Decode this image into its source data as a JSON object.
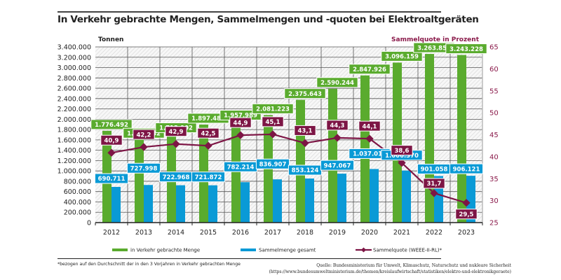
{
  "page": {
    "title": "In Verkehr gebrachte Mengen, Sammelmengen und -quoten bei Elektroaltgeräten",
    "footnote": "*bezogen auf den Durchschnitt der in den 3 Vorjahren in Verkehr gebrachten Menge",
    "source_line1": "Quelle: Bundesministerium für Umwelt, Klimaschutz, Naturschutz und nukleare Sicherheit",
    "source_line2": "(https://www.bundesumweltministerium.de/themen/kreislaufwirtschaft/statistiken/elektro-und-elektronikgeraete)"
  },
  "colors": {
    "green": "#5aab2e",
    "blue": "#0a9ad6",
    "maroon": "#7d1545"
  },
  "chart_data": {
    "type": "bar",
    "title": "In Verkehr gebrachte Mengen, Sammelmengen und -quoten bei Elektroaltgeräten",
    "ylabel": "Tonnen",
    "y2label": "Sammelquote in Prozent",
    "xlabel": "",
    "ylim": [
      0,
      3400000
    ],
    "y2lim": [
      25,
      65
    ],
    "grid": true,
    "legend_position": "bottom",
    "yticks": [
      "0",
      "200.000",
      "400.000",
      "600.000",
      "800.000",
      "1.000.000",
      "1.200.000",
      "1.400.000",
      "1.600.000",
      "1.800.000",
      "2.000.000",
      "2.200.000",
      "2.400.000",
      "2.600.000",
      "2.800.000",
      "3.000.000",
      "3.200.000",
      "3.400.000"
    ],
    "y2ticks": [
      "25",
      "30",
      "35",
      "40",
      "45",
      "50",
      "55",
      "60",
      "65"
    ],
    "categories": [
      "2012",
      "2013",
      "2014",
      "2015",
      "2016",
      "2017",
      "2018",
      "2019",
      "2020",
      "2021",
      "2022",
      "2023"
    ],
    "series": [
      {
        "name": "in Verkehr gebrachte Menge",
        "type": "bar",
        "axis": "left",
        "values": [
          1776492,
          1609232,
          1713902,
          1897480,
          1957989,
          2081223,
          2375643,
          2590244,
          2847926,
          3096159,
          3263859,
          3243228
        ],
        "labels": [
          "1.776.492",
          "1.609.232",
          "1.713.902",
          "1.897.480",
          "1.957.989",
          "2.081.223",
          "2.375.643",
          "2.590.244",
          "2.847.926",
          "3.096.159",
          "3.263.859",
          "3.243.228"
        ]
      },
      {
        "name": "Sammelmenge gesamt",
        "type": "bar",
        "axis": "left",
        "values": [
          690711,
          727998,
          722968,
          721872,
          782214,
          836907,
          853124,
          947067,
          1037019,
          1006370,
          901058,
          906121
        ],
        "labels": [
          "690.711",
          "727.998",
          "722.968",
          "721.872",
          "782.214",
          "836.907",
          "853.124",
          "947.067",
          "1.037.019",
          "1.006.370",
          "901.058",
          "906.121"
        ]
      },
      {
        "name": "Sammelquote (WEEE-II-RL)*",
        "type": "line",
        "axis": "right",
        "values": [
          40.9,
          42.2,
          42.9,
          42.5,
          44.9,
          45.1,
          43.1,
          44.3,
          44.1,
          38.6,
          31.7,
          29.5
        ],
        "labels": [
          "40,9",
          "42,2",
          "42,9",
          "42,5",
          "44,9",
          "45,1",
          "43,1",
          "44,3",
          "44,1",
          "38,6",
          "31,7",
          "29,5"
        ]
      }
    ]
  }
}
